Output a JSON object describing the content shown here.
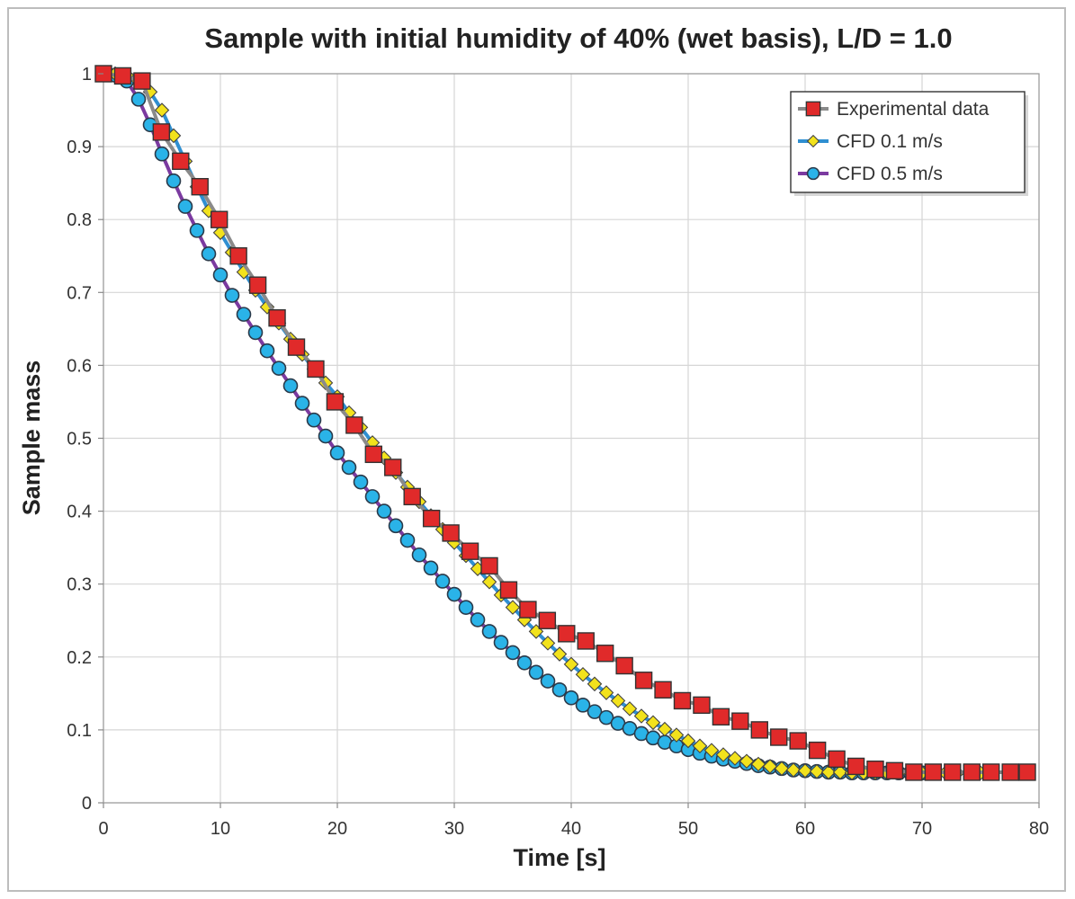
{
  "chart_data": {
    "type": "scatter",
    "title": "Sample with initial humidity of 40% (wet basis), L/D = 1.0",
    "xlabel": "Time [s]",
    "ylabel": "Sample mass",
    "xlim": [
      0,
      80
    ],
    "ylim": [
      0,
      1
    ],
    "x_ticks": [
      "0",
      "10",
      "20",
      "30",
      "40",
      "50",
      "60",
      "70",
      "80"
    ],
    "y_ticks": [
      "0",
      "0.1",
      "0.2",
      "0.3",
      "0.4",
      "0.5",
      "0.6",
      "0.7",
      "0.8",
      "0.9",
      "1"
    ],
    "grid": true,
    "legend_position": "top-right",
    "series": [
      {
        "name": "Experimental data",
        "marker": "square",
        "color": "#e02a2a",
        "line_color": "#8a8a8a",
        "x": [
          0,
          1.65,
          3.3,
          4.95,
          6.6,
          8.25,
          9.9,
          11.55,
          13.2,
          14.85,
          16.5,
          18.15,
          19.8,
          21.45,
          23.1,
          24.75,
          26.4,
          28.05,
          29.7,
          31.35,
          33,
          34.65,
          36.3,
          37.95,
          39.6,
          41.25,
          42.9,
          44.55,
          46.2,
          47.85,
          49.5,
          51.15,
          52.8,
          54.45,
          56.1,
          57.75,
          59.4,
          61.05,
          62.7,
          64.35,
          66,
          67.65,
          69.3,
          70.95,
          72.6,
          74.25,
          75.9,
          77.55,
          79
        ],
        "y": [
          1,
          0.997,
          0.99,
          0.92,
          0.88,
          0.845,
          0.8,
          0.75,
          0.71,
          0.665,
          0.625,
          0.595,
          0.55,
          0.518,
          0.478,
          0.46,
          0.42,
          0.39,
          0.37,
          0.345,
          0.325,
          0.292,
          0.265,
          0.25,
          0.232,
          0.222,
          0.205,
          0.188,
          0.168,
          0.155,
          0.14,
          0.134,
          0.118,
          0.112,
          0.1,
          0.09,
          0.085,
          0.072,
          0.06,
          0.05,
          0.046,
          0.044,
          0.042,
          0.042,
          0.042,
          0.042,
          0.042,
          0.042,
          0.042
        ]
      },
      {
        "name": "CFD 0.1 m/s",
        "marker": "diamond",
        "color": "#f2e21c",
        "line_color": "#2f8fd1",
        "x": [
          0,
          1,
          2,
          3,
          4,
          5,
          6,
          7,
          8,
          9,
          10,
          11,
          12,
          13,
          14,
          15,
          16,
          17,
          18,
          19,
          20,
          21,
          22,
          23,
          24,
          25,
          26,
          27,
          28,
          29,
          30,
          31,
          32,
          33,
          34,
          35,
          36,
          37,
          38,
          39,
          40,
          41,
          42,
          43,
          44,
          45,
          46,
          47,
          48,
          49,
          50,
          51,
          52,
          53,
          54,
          55,
          56,
          57,
          58,
          59,
          60,
          61,
          62,
          63,
          64,
          65,
          66,
          67,
          68,
          69,
          70,
          71,
          72,
          73,
          74,
          75
        ],
        "y": [
          1,
          1,
          0.998,
          0.99,
          0.975,
          0.95,
          0.915,
          0.88,
          0.845,
          0.812,
          0.782,
          0.755,
          0.728,
          0.703,
          0.68,
          0.658,
          0.636,
          0.615,
          0.595,
          0.576,
          0.557,
          0.535,
          0.515,
          0.494,
          0.473,
          0.453,
          0.433,
          0.413,
          0.394,
          0.375,
          0.357,
          0.339,
          0.321,
          0.303,
          0.285,
          0.268,
          0.251,
          0.235,
          0.219,
          0.204,
          0.19,
          0.176,
          0.163,
          0.151,
          0.14,
          0.129,
          0.119,
          0.11,
          0.101,
          0.093,
          0.085,
          0.078,
          0.072,
          0.066,
          0.061,
          0.057,
          0.053,
          0.05,
          0.047,
          0.045,
          0.044,
          0.043,
          0.042,
          0.042,
          0.041,
          0.041,
          0.041,
          0.041,
          0.041,
          0.041,
          0.041,
          0.041,
          0.041,
          0.041,
          0.041,
          0.041
        ]
      },
      {
        "name": "CFD 0.5 m/s",
        "marker": "circle",
        "color": "#2ab3e8",
        "line_color": "#7b3aa0",
        "x": [
          0,
          1,
          2,
          3,
          4,
          5,
          6,
          7,
          8,
          9,
          10,
          11,
          12,
          13,
          14,
          15,
          16,
          17,
          18,
          19,
          20,
          21,
          22,
          23,
          24,
          25,
          26,
          27,
          28,
          29,
          30,
          31,
          32,
          33,
          34,
          35,
          36,
          37,
          38,
          39,
          40,
          41,
          42,
          43,
          44,
          45,
          46,
          47,
          48,
          49,
          50,
          51,
          52,
          53,
          54,
          55,
          56,
          57,
          58,
          59,
          60,
          61,
          62,
          63,
          64,
          65,
          66,
          67,
          68,
          69,
          70
        ],
        "y": [
          1,
          0.998,
          0.99,
          0.965,
          0.93,
          0.89,
          0.853,
          0.818,
          0.785,
          0.753,
          0.724,
          0.696,
          0.67,
          0.645,
          0.62,
          0.596,
          0.572,
          0.548,
          0.525,
          0.503,
          0.48,
          0.46,
          0.44,
          0.42,
          0.4,
          0.38,
          0.36,
          0.34,
          0.322,
          0.304,
          0.286,
          0.268,
          0.251,
          0.235,
          0.22,
          0.206,
          0.192,
          0.179,
          0.167,
          0.155,
          0.144,
          0.134,
          0.125,
          0.117,
          0.109,
          0.102,
          0.095,
          0.089,
          0.083,
          0.078,
          0.073,
          0.068,
          0.064,
          0.06,
          0.057,
          0.054,
          0.051,
          0.049,
          0.047,
          0.045,
          0.044,
          0.043,
          0.042,
          0.042,
          0.041,
          0.041,
          0.041,
          0.041,
          0.041,
          0.041,
          0.041
        ]
      }
    ]
  }
}
